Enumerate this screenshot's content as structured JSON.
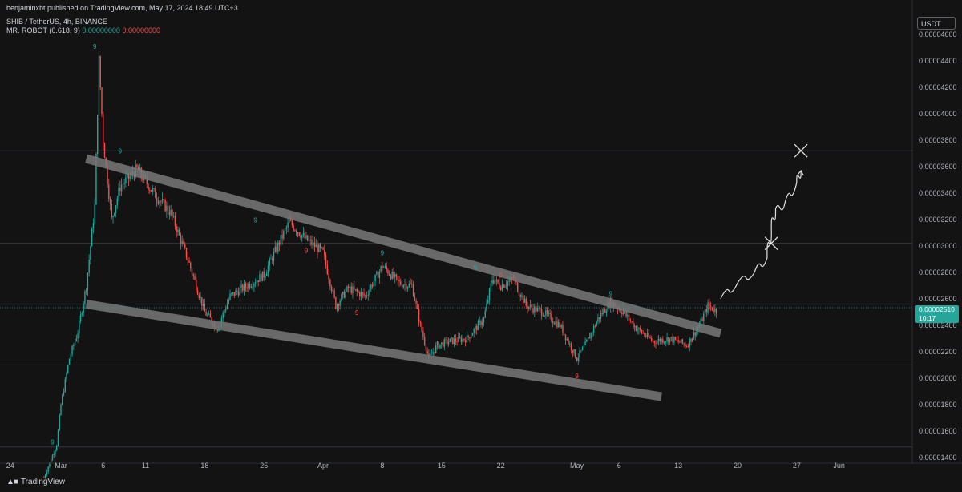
{
  "header": {
    "publisher": "benjaminxbt published on TradingView.com, May 17, 2024 18:49 UTC+3",
    "symbol": "SHIB / TetherUS, 4h, BINANCE",
    "indicator": "MR. ROBOT (0.618, 9)",
    "indicator_val1": "0.00000000",
    "indicator_val2": "0.00000000"
  },
  "currency_button": "USDT",
  "last_price": {
    "value": "0.00002510",
    "countdown": "10:17"
  },
  "footer": {
    "logo_text": "TradingView"
  },
  "colors": {
    "background": "#131313",
    "up": "#26a69a",
    "down": "#ef5350",
    "channel": "#787878"
  },
  "chart_data": {
    "type": "candlestick",
    "symbol": "SHIB/USDT",
    "timeframe": "4h",
    "ylim": [
      1.4e-05,
      4.6e-05
    ],
    "y_ticks": [
      "0.00001400",
      "0.00001600",
      "0.00001800",
      "0.00002000",
      "0.00002200",
      "0.00002400",
      "0.00002600",
      "0.00002800",
      "0.00003000",
      "0.00003200",
      "0.00003400",
      "0.00003600",
      "0.00003800",
      "0.00004000",
      "0.00004200",
      "0.00004400",
      "0.00004600"
    ],
    "x_ticks": [
      {
        "label": "24",
        "date": "2024-02-24"
      },
      {
        "label": "Mar",
        "date": "2024-03-01"
      },
      {
        "label": "6",
        "date": "2024-03-06"
      },
      {
        "label": "11",
        "date": "2024-03-11"
      },
      {
        "label": "18",
        "date": "2024-03-18"
      },
      {
        "label": "25",
        "date": "2024-03-25"
      },
      {
        "label": "Apr",
        "date": "2024-04-01"
      },
      {
        "label": "8",
        "date": "2024-04-08"
      },
      {
        "label": "15",
        "date": "2024-04-15"
      },
      {
        "label": "22",
        "date": "2024-04-22"
      },
      {
        "label": "May",
        "date": "2024-05-01"
      },
      {
        "label": "6",
        "date": "2024-05-06"
      },
      {
        "label": "13",
        "date": "2024-05-13"
      },
      {
        "label": "20",
        "date": "2024-05-20"
      },
      {
        "label": "27",
        "date": "2024-05-27"
      },
      {
        "label": "Jun",
        "date": "2024-06-01"
      }
    ],
    "price_path": [
      {
        "date": "2024-02-28T00:00",
        "close": 1.25e-05
      },
      {
        "date": "2024-02-29T12:00",
        "close": 1.5e-05
      },
      {
        "date": "2024-03-01T00:00",
        "close": 1.8e-05
      },
      {
        "date": "2024-03-02T00:00",
        "close": 2.15e-05
      },
      {
        "date": "2024-03-03T00:00",
        "close": 2.35e-05
      },
      {
        "date": "2024-03-04T00:00",
        "close": 2.7e-05
      },
      {
        "date": "2024-03-05T00:00",
        "close": 3.3e-05
      },
      {
        "date": "2024-03-05T12:00",
        "close": 4.4e-05
      },
      {
        "date": "2024-03-06T00:00",
        "close": 3.8e-05
      },
      {
        "date": "2024-03-07T00:00",
        "close": 3.2e-05
      },
      {
        "date": "2024-03-08T00:00",
        "close": 3.45e-05
      },
      {
        "date": "2024-03-10T00:00",
        "close": 3.58e-05
      },
      {
        "date": "2024-03-12T00:00",
        "close": 3.4e-05
      },
      {
        "date": "2024-03-14T00:00",
        "close": 3.25e-05
      },
      {
        "date": "2024-03-16T00:00",
        "close": 2.9e-05
      },
      {
        "date": "2024-03-18T00:00",
        "close": 2.5e-05
      },
      {
        "date": "2024-03-19T12:00",
        "close": 2.38e-05
      },
      {
        "date": "2024-03-21T00:00",
        "close": 2.62e-05
      },
      {
        "date": "2024-03-23T00:00",
        "close": 2.7e-05
      },
      {
        "date": "2024-03-25T00:00",
        "close": 2.78e-05
      },
      {
        "date": "2024-03-27T00:00",
        "close": 3.05e-05
      },
      {
        "date": "2024-03-28T00:00",
        "close": 3.18e-05
      },
      {
        "date": "2024-03-30T00:00",
        "close": 3.05e-05
      },
      {
        "date": "2024-04-01T00:00",
        "close": 2.95e-05
      },
      {
        "date": "2024-04-02T12:00",
        "close": 2.55e-05
      },
      {
        "date": "2024-04-04T00:00",
        "close": 2.68e-05
      },
      {
        "date": "2024-04-06T00:00",
        "close": 2.62e-05
      },
      {
        "date": "2024-04-08T00:00",
        "close": 2.85e-05
      },
      {
        "date": "2024-04-10T00:00",
        "close": 2.72e-05
      },
      {
        "date": "2024-04-11T12:00",
        "close": 2.7e-05
      },
      {
        "date": "2024-04-12T12:00",
        "close": 2.4e-05
      },
      {
        "date": "2024-04-13T12:00",
        "close": 2.15e-05
      },
      {
        "date": "2024-04-14T12:00",
        "close": 2.25e-05
      },
      {
        "date": "2024-04-16T00:00",
        "close": 2.28e-05
      },
      {
        "date": "2024-04-18T00:00",
        "close": 2.3e-05
      },
      {
        "date": "2024-04-20T00:00",
        "close": 2.45e-05
      },
      {
        "date": "2024-04-21T00:00",
        "close": 2.75e-05
      },
      {
        "date": "2024-04-22T00:00",
        "close": 2.7e-05
      },
      {
        "date": "2024-04-23T12:00",
        "close": 2.75e-05
      },
      {
        "date": "2024-04-25T00:00",
        "close": 2.55e-05
      },
      {
        "date": "2024-04-27T00:00",
        "close": 2.5e-05
      },
      {
        "date": "2024-04-29T00:00",
        "close": 2.4e-05
      },
      {
        "date": "2024-05-01T00:00",
        "close": 2.15e-05
      },
      {
        "date": "2024-05-02T00:00",
        "close": 2.25e-05
      },
      {
        "date": "2024-05-03T12:00",
        "close": 2.45e-05
      },
      {
        "date": "2024-05-05T00:00",
        "close": 2.58e-05
      },
      {
        "date": "2024-05-06T12:00",
        "close": 2.5e-05
      },
      {
        "date": "2024-05-08T00:00",
        "close": 2.38e-05
      },
      {
        "date": "2024-05-10T00:00",
        "close": 2.28e-05
      },
      {
        "date": "2024-05-12T00:00",
        "close": 2.3e-05
      },
      {
        "date": "2024-05-14T00:00",
        "close": 2.25e-05
      },
      {
        "date": "2024-05-15T12:00",
        "close": 2.4e-05
      },
      {
        "date": "2024-05-16T12:00",
        "close": 2.55e-05
      },
      {
        "date": "2024-05-17T12:00",
        "close": 2.51e-05
      }
    ],
    "channel_upper": [
      {
        "date": "2024-03-04T00:00",
        "price": 3.66e-05
      },
      {
        "date": "2024-05-18T00:00",
        "price": 2.34e-05
      }
    ],
    "channel_lower": [
      {
        "date": "2024-03-04T00:00",
        "price": 2.56e-05
      },
      {
        "date": "2024-05-11T00:00",
        "price": 1.86e-05
      }
    ],
    "horizontal_levels": [
      3.72e-05,
      3.02e-05,
      2.56e-05,
      2.1e-05,
      1.48e-05
    ],
    "projection_path": [
      {
        "date": "2024-05-18T00:00",
        "price": 2.6e-05
      },
      {
        "date": "2024-05-20T00:00",
        "price": 2.72e-05
      },
      {
        "date": "2024-05-22T00:00",
        "price": 2.8e-05
      },
      {
        "date": "2024-05-23T12:00",
        "price": 2.91e-05
      },
      {
        "date": "2024-05-24T00:00",
        "price": 3.13e-05
      },
      {
        "date": "2024-05-24T12:00",
        "price": 3.28e-05
      },
      {
        "date": "2024-05-25T12:00",
        "price": 3.3e-05
      },
      {
        "date": "2024-05-27T00:00",
        "price": 3.48e-05
      },
      {
        "date": "2024-05-27T12:00",
        "price": 3.57e-05
      }
    ],
    "target_marks": [
      {
        "date": "2024-05-24T00:00",
        "price": 3.02e-05
      },
      {
        "date": "2024-05-27T12:00",
        "price": 3.72e-05
      }
    ],
    "td_labels": [
      {
        "text": "9",
        "date": "2024-02-29T00:00",
        "price": 1.5e-05,
        "color": "up"
      },
      {
        "text": "9",
        "date": "2024-03-05T00:00",
        "price": 4.49e-05,
        "color": "up"
      },
      {
        "text": "9",
        "date": "2024-03-08T00:00",
        "price": 3.7e-05,
        "color": "up"
      },
      {
        "text": "9",
        "date": "2024-03-24T00:00",
        "price": 3.18e-05,
        "color": "up"
      },
      {
        "text": "9",
        "date": "2024-03-30T00:00",
        "price": 2.95e-05,
        "color": "down"
      },
      {
        "text": "9",
        "date": "2024-04-05T00:00",
        "price": 2.48e-05,
        "color": "down"
      },
      {
        "text": "9",
        "date": "2024-04-08T00:00",
        "price": 2.93e-05,
        "color": "up"
      },
      {
        "text": "9",
        "date": "2024-04-19T00:00",
        "price": 2.82e-05,
        "color": "up"
      },
      {
        "text": "9",
        "date": "2024-04-22T00:00",
        "price": 2.76e-05,
        "color": "down"
      },
      {
        "text": "9",
        "date": "2024-05-01T00:00",
        "price": 2e-05,
        "color": "down"
      },
      {
        "text": "9",
        "date": "2024-05-05T00:00",
        "price": 2.62e-05,
        "color": "up"
      }
    ]
  }
}
